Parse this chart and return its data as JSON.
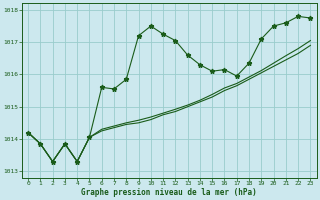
{
  "title": "Graphe pression niveau de la mer (hPa)",
  "background_color": "#cce8ee",
  "grid_color": "#99cccc",
  "line_color": "#1a5c1a",
  "xlim": [
    -0.5,
    23.5
  ],
  "ylim": [
    1012.8,
    1018.2
  ],
  "yticks": [
    1013,
    1014,
    1015,
    1016,
    1017,
    1018
  ],
  "xticks": [
    0,
    1,
    2,
    3,
    4,
    5,
    6,
    7,
    8,
    9,
    10,
    11,
    12,
    13,
    14,
    15,
    16,
    17,
    18,
    19,
    20,
    21,
    22,
    23
  ],
  "series_wavy": [
    1014.2,
    1013.85,
    1013.3,
    1013.85,
    1013.3,
    1014.05,
    1015.6,
    1015.55,
    1015.85,
    1017.2,
    1017.5,
    1017.25,
    1017.05,
    1016.6,
    1016.3,
    1016.1,
    1016.15,
    1015.95,
    1016.35,
    1017.1,
    1017.5,
    1017.6,
    1017.8,
    1017.75
  ],
  "series_line1": [
    1014.2,
    1013.85,
    1013.3,
    1013.85,
    1013.3,
    1014.05,
    1014.25,
    1014.35,
    1014.45,
    1014.5,
    1014.6,
    1014.75,
    1014.85,
    1015.0,
    1015.15,
    1015.3,
    1015.5,
    1015.65,
    1015.85,
    1016.05,
    1016.25,
    1016.45,
    1016.65,
    1016.9
  ],
  "series_line2": [
    1014.2,
    1013.85,
    1013.3,
    1013.85,
    1013.3,
    1014.05,
    1014.3,
    1014.4,
    1014.5,
    1014.58,
    1014.68,
    1014.8,
    1014.92,
    1015.05,
    1015.2,
    1015.38,
    1015.58,
    1015.72,
    1015.92,
    1016.12,
    1016.35,
    1016.58,
    1016.8,
    1017.05
  ]
}
